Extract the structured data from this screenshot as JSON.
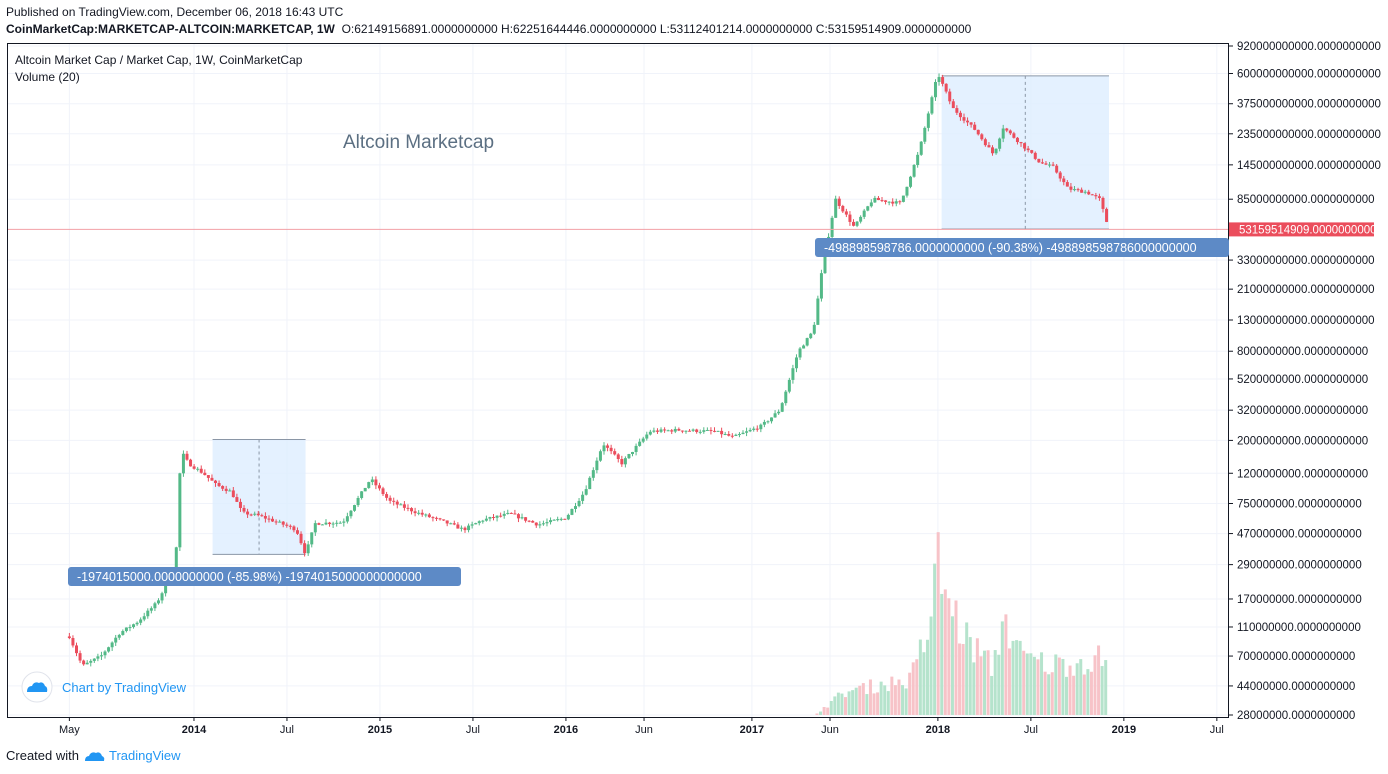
{
  "header": {
    "published": "Published on TradingView.com, December 06, 2018 16:43 UTC",
    "symbol": "CoinMarketCap:MARKETCAP-ALTCOIN:MARKETCAP, 1W",
    "ohlc": "O:62149156891.0000000000 H:62251644446.0000000000 L:53112401214.0000000000 C:53159514909.0000000000"
  },
  "legend": {
    "title": "Altcoin Market Cap / Market Cap, 1W, CoinMarketCap",
    "volume": "Volume (20)"
  },
  "annotation_text": "Altcoin Marketcap",
  "watermark": "Chart by TradingView",
  "footer": {
    "created": "Created with",
    "brand": "TradingView"
  },
  "colors": {
    "up": "#53b987",
    "down": "#eb4d5c",
    "vol_up": "#b5e3cc",
    "vol_down": "#f7c3c8",
    "range_fill": "#ddeeff",
    "range_label_bg": "#5d8ac6",
    "last_price_bg": "#eb4d5c",
    "grid": "#f0f3fa",
    "brand": "#2196f3"
  },
  "chart_data": {
    "type": "candlestick",
    "title": "Altcoin Market Cap / Market Cap, 1W, CoinMarketCap",
    "y_scale": "log",
    "ylim": [
      28000000,
      920000000000
    ],
    "y_ticks": [
      {
        "v": 920000000000,
        "label": "920000000000.0000000000"
      },
      {
        "v": 600000000000,
        "label": "600000000000.0000000000"
      },
      {
        "v": 375000000000,
        "label": "375000000000.0000000000"
      },
      {
        "v": 235000000000,
        "label": "235000000000.0000000000"
      },
      {
        "v": 145000000000,
        "label": "145000000000.0000000000"
      },
      {
        "v": 85000000000,
        "label": "85000000000.0000000000"
      },
      {
        "v": 33000000000,
        "label": "33000000000.0000000000"
      },
      {
        "v": 21000000000,
        "label": "21000000000.0000000000"
      },
      {
        "v": 13000000000,
        "label": "13000000000.0000000000"
      },
      {
        "v": 8000000000,
        "label": "8000000000.0000000000"
      },
      {
        "v": 5200000000,
        "label": "5200000000.0000000000"
      },
      {
        "v": 3200000000,
        "label": "3200000000.0000000000"
      },
      {
        "v": 2000000000,
        "label": "2000000000.0000000000"
      },
      {
        "v": 1200000000,
        "label": "1200000000.0000000000"
      },
      {
        "v": 750000000,
        "label": "750000000.0000000000"
      },
      {
        "v": 470000000,
        "label": "470000000.0000000000"
      },
      {
        "v": 290000000,
        "label": "290000000.0000000000"
      },
      {
        "v": 170000000,
        "label": "170000000.0000000000"
      },
      {
        "v": 110000000,
        "label": "110000000.0000000000"
      },
      {
        "v": 70000000,
        "label": "70000000.0000000000"
      },
      {
        "v": 44000000,
        "label": "44000000.0000000000"
      },
      {
        "v": 28000000,
        "label": "28000000.0000000000"
      }
    ],
    "x_ticks": [
      {
        "t": 2013.33,
        "label": "May",
        "bold": false
      },
      {
        "t": 2014.0,
        "label": "2014",
        "bold": true
      },
      {
        "t": 2014.5,
        "label": "Jul",
        "bold": false
      },
      {
        "t": 2015.0,
        "label": "2015",
        "bold": true
      },
      {
        "t": 2015.5,
        "label": "Jul",
        "bold": false
      },
      {
        "t": 2016.0,
        "label": "2016",
        "bold": true
      },
      {
        "t": 2016.42,
        "label": "Jun",
        "bold": false
      },
      {
        "t": 2017.0,
        "label": "2017",
        "bold": true
      },
      {
        "t": 2017.42,
        "label": "Jun",
        "bold": false
      },
      {
        "t": 2018.0,
        "label": "2018",
        "bold": true
      },
      {
        "t": 2018.5,
        "label": "Jul",
        "bold": false
      },
      {
        "t": 2019.0,
        "label": "2019",
        "bold": true
      },
      {
        "t": 2019.5,
        "label": "Jul",
        "bold": false
      }
    ],
    "xlim": [
      2013.0,
      2019.56
    ],
    "last_price": {
      "value": 53159514909,
      "label": "53159514909.0000000000"
    },
    "price_path": [
      [
        2013.33,
        95000000
      ],
      [
        2013.4,
        60000000
      ],
      [
        2013.5,
        70000000
      ],
      [
        2013.6,
        100000000
      ],
      [
        2013.7,
        120000000
      ],
      [
        2013.8,
        160000000
      ],
      [
        2013.9,
        280000000
      ],
      [
        2013.93,
        1700000000
      ],
      [
        2013.97,
        1400000000
      ],
      [
        2014.05,
        1200000000
      ],
      [
        2014.12,
        1000000000
      ],
      [
        2014.2,
        900000000
      ],
      [
        2014.26,
        650000000
      ],
      [
        2014.35,
        620000000
      ],
      [
        2014.45,
        560000000
      ],
      [
        2014.55,
        500000000
      ],
      [
        2014.6,
        340000000
      ],
      [
        2014.65,
        550000000
      ],
      [
        2014.8,
        560000000
      ],
      [
        2014.95,
        1100000000
      ],
      [
        2015.05,
        780000000
      ],
      [
        2015.2,
        650000000
      ],
      [
        2015.35,
        560000000
      ],
      [
        2015.45,
        500000000
      ],
      [
        2015.55,
        580000000
      ],
      [
        2015.7,
        640000000
      ],
      [
        2015.85,
        540000000
      ],
      [
        2016.0,
        600000000
      ],
      [
        2016.1,
        900000000
      ],
      [
        2016.2,
        1900000000
      ],
      [
        2016.3,
        1400000000
      ],
      [
        2016.45,
        2300000000
      ],
      [
        2016.6,
        2350000000
      ],
      [
        2016.8,
        2300000000
      ],
      [
        2016.9,
        2100000000
      ],
      [
        2017.05,
        2500000000
      ],
      [
        2017.15,
        3200000000
      ],
      [
        2017.25,
        8000000000
      ],
      [
        2017.33,
        11000000000
      ],
      [
        2017.38,
        30000000000
      ],
      [
        2017.45,
        85000000000
      ],
      [
        2017.55,
        55000000000
      ],
      [
        2017.65,
        85000000000
      ],
      [
        2017.8,
        80000000000
      ],
      [
        2017.9,
        180000000000
      ],
      [
        2018.0,
        600000000000
      ],
      [
        2018.08,
        350000000000
      ],
      [
        2018.2,
        250000000000
      ],
      [
        2018.3,
        170000000000
      ],
      [
        2018.35,
        260000000000
      ],
      [
        2018.45,
        200000000000
      ],
      [
        2018.55,
        150000000000
      ],
      [
        2018.62,
        140000000000
      ],
      [
        2018.7,
        100000000000
      ],
      [
        2018.8,
        95000000000
      ],
      [
        2018.87,
        85000000000
      ],
      [
        2018.92,
        53159514909
      ]
    ],
    "volume": {
      "ylim": [
        0,
        420000000
      ],
      "start_t": 2017.35,
      "end_t": 2018.92,
      "points": [
        [
          2017.35,
          5000000
        ],
        [
          2017.5,
          60000000
        ],
        [
          2017.7,
          80000000
        ],
        [
          2017.85,
          90000000
        ],
        [
          2017.95,
          220000000
        ],
        [
          2018.0,
          400000000
        ],
        [
          2018.05,
          300000000
        ],
        [
          2018.15,
          200000000
        ],
        [
          2018.3,
          120000000
        ],
        [
          2018.35,
          260000000
        ],
        [
          2018.45,
          150000000
        ],
        [
          2018.6,
          130000000
        ],
        [
          2018.8,
          140000000
        ],
        [
          2018.9,
          150000000
        ]
      ]
    },
    "ranges": [
      {
        "t1": 2014.1,
        "t2": 2014.6,
        "top": 2030000000,
        "bottom": 340000000,
        "label": "-1974015000.0000000000 (-85.98%) -1974015000000000000"
      },
      {
        "t1": 2018.02,
        "t2": 2018.92,
        "top": 578000000000,
        "bottom": 53500000000,
        "label": "-498898598786.0000000000 (-90.38%) -498898598786000000000"
      }
    ]
  }
}
